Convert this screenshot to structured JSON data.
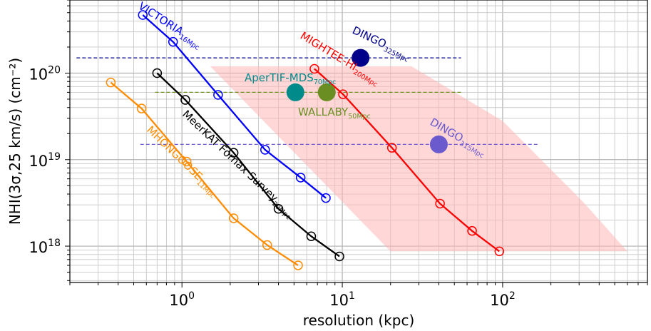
{
  "chart_data": {
    "type": "line",
    "xlabel": "resolution (kpc)",
    "ylabel": "NHI(3σ,25 km/s) (cm⁻²)",
    "xscale": "log",
    "yscale": "log",
    "xlim": [
      0.2,
      800
    ],
    "ylim": [
      3.8e+17,
      7e+20
    ],
    "grid": true,
    "x_ticks": [
      {
        "value": 1,
        "base": "10",
        "exp": "0"
      },
      {
        "value": 10,
        "base": "10",
        "exp": "1"
      },
      {
        "value": 100,
        "base": "10",
        "exp": "2"
      }
    ],
    "y_ticks": [
      {
        "value": 1e+18,
        "base": "10",
        "exp": "18"
      },
      {
        "value": 1e+19,
        "base": "10",
        "exp": "19"
      },
      {
        "value": 1e+20,
        "base": "10",
        "exp": "20"
      }
    ],
    "series": [
      {
        "name": "VICTORIA",
        "subscript": "16Mpc",
        "color": "#0000ff",
        "x": [
          0.57,
          0.88,
          1.68,
          3.3,
          5.5,
          7.9
        ],
        "y": [
          4.7e+20,
          2.3e+20,
          5.6e+19,
          1.3e+19,
          6.2e+18,
          3.6e+18
        ]
      },
      {
        "name": "MeerKAT Fornax Survey",
        "subscript": "20Mpc",
        "color": "#000000",
        "x": [
          0.7,
          1.05,
          2.1,
          4.0,
          6.4,
          9.6
        ],
        "y": [
          1e+20,
          4.9e+19,
          1.2e+19,
          2.7e+18,
          1.3e+18,
          7.6e+17
        ]
      },
      {
        "name": "MHONGOOSE",
        "subscript": "11Mpc",
        "color": "#ff8c00",
        "x": [
          0.36,
          0.56,
          1.07,
          2.1,
          3.4,
          5.3
        ],
        "y": [
          7.8e+19,
          3.9e+19,
          9.5e+18,
          2.1e+18,
          1.03e+18,
          6e+17
        ]
      },
      {
        "name": "MIGHTEE-HI",
        "subscript": "200Mpc",
        "color": "#ff0000",
        "x": [
          6.7,
          10.1,
          20.4,
          40.7,
          64.5,
          95.4
        ],
        "y": [
          1.12e+20,
          5.7e+19,
          1.37e+19,
          3.1e+18,
          1.5e+18,
          8.7e+17
        ]
      }
    ],
    "points": [
      {
        "name": "DINGO",
        "subscript": "325Mpc",
        "color": "#00008b",
        "x": 13.0,
        "y": 1.5e+20
      },
      {
        "name": "AperTIF-MDS",
        "subscript": "70Mpc",
        "color": "#008b8b",
        "x": 5.1,
        "y": 6e+19
      },
      {
        "name": "WALLABY",
        "subscript": "50Mpc",
        "color": "#6b8e23",
        "x": 8.0,
        "y": 6e+19
      },
      {
        "name": "DINGO",
        "subscript": "315Mpc",
        "color": "#6a5acd",
        "x": 40.0,
        "y": 1.5e+19
      }
    ],
    "hlines": [
      {
        "y": 1.5e+20,
        "x_from": 0.22,
        "x_to": 55,
        "color": "#00008b"
      },
      {
        "y": 6e+19,
        "x_from": 0.68,
        "x_to": 55,
        "color": "#6b8e23"
      },
      {
        "y": 1.5e+19,
        "x_from": 0.55,
        "x_to": 165,
        "color": "#6a5acd"
      }
    ],
    "shaded_region": {
      "color": "#ffb6b6",
      "polygon": [
        [
          1.5,
          1.2e+20
        ],
        [
          27,
          1.2e+20
        ],
        [
          100,
          2.8e+19
        ],
        [
          320,
          3.2e+18
        ],
        [
          600,
          8.7e+17
        ],
        [
          20,
          8.7e+17
        ]
      ]
    }
  }
}
